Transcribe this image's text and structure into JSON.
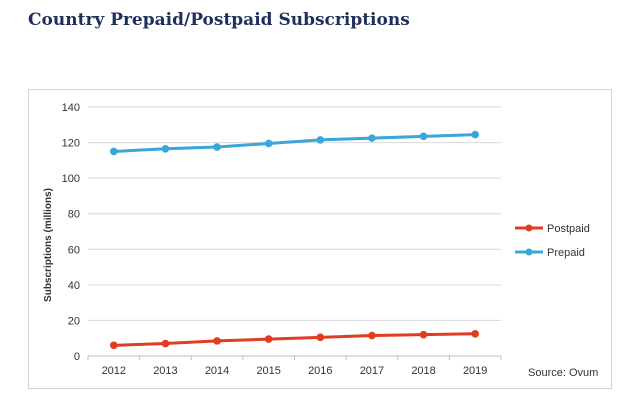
{
  "page": {
    "title": "Country Prepaid/Postpaid Subscriptions"
  },
  "chart_data": {
    "type": "line",
    "title": "",
    "xlabel": "",
    "ylabel": "Subscriptions (millions)",
    "categories": [
      "2012",
      "2013",
      "2014",
      "2015",
      "2016",
      "2017",
      "2018",
      "2019"
    ],
    "ylim": [
      0,
      140
    ],
    "yticks": [
      0,
      20,
      40,
      60,
      80,
      100,
      120,
      140
    ],
    "grid": true,
    "legend_position": "right",
    "series": [
      {
        "name": "Postpaid",
        "color": "#e03c1f",
        "values": [
          6,
          7,
          8.5,
          9.5,
          10.5,
          11.5,
          12,
          12.5
        ]
      },
      {
        "name": "Prepaid",
        "color": "#3ba6d8",
        "values": [
          115,
          116.5,
          117.5,
          119.5,
          121.5,
          122.5,
          123.5,
          124.5
        ]
      }
    ],
    "source": "Source: Ovum"
  }
}
